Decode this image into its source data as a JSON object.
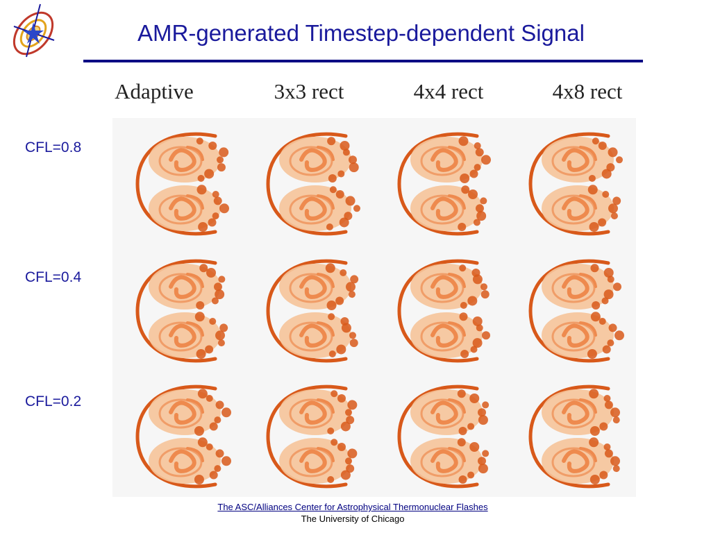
{
  "title": "AMR-generated Timestep-dependent Signal",
  "columns": [
    {
      "label": "Adaptive"
    },
    {
      "label": "3x3 rect"
    },
    {
      "label": "4x4 rect"
    },
    {
      "label": "4x8 rect"
    }
  ],
  "rows": [
    {
      "label": "CFL=0.8"
    },
    {
      "label": "CFL=0.4"
    },
    {
      "label": "CFL=0.2"
    }
  ],
  "footer": {
    "link_text": "The ASC/Alliances Center for Astrophysical Thermonuclear Flashes",
    "affiliation": "The University of Chicago"
  },
  "colors": {
    "title": "#1a1a9c",
    "rule": "#0c0c84",
    "flame_dark": "#d8591a",
    "flame_mid": "#ee8a4e",
    "flame_light": "#f6c49a"
  }
}
